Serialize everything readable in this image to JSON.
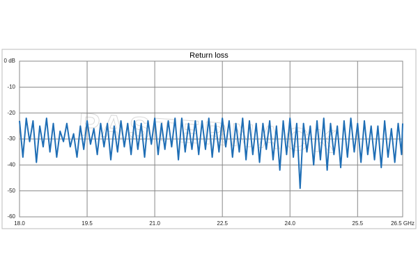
{
  "chart_data": {
    "type": "line",
    "title": "Return loss",
    "watermark": "PASTERNACK",
    "x": [
      18,
      18.075,
      18.15,
      18.225,
      18.3,
      18.375,
      18.45,
      18.525,
      18.6,
      18.675,
      18.75,
      18.825,
      18.9,
      18.975,
      19.05,
      19.125,
      19.2,
      19.275,
      19.35,
      19.425,
      19.5,
      19.575,
      19.65,
      19.725,
      19.8,
      19.875,
      19.95,
      20.025,
      20.1,
      20.175,
      20.25,
      20.325,
      20.4,
      20.475,
      20.55,
      20.625,
      20.7,
      20.775,
      20.85,
      20.925,
      21,
      21.075,
      21.15,
      21.225,
      21.3,
      21.375,
      21.45,
      21.525,
      21.6,
      21.675,
      21.75,
      21.825,
      21.9,
      21.975,
      22.05,
      22.125,
      22.2,
      22.275,
      22.35,
      22.425,
      22.5,
      22.575,
      22.65,
      22.725,
      22.8,
      22.875,
      22.95,
      23.025,
      23.1,
      23.175,
      23.25,
      23.325,
      23.4,
      23.475,
      23.55,
      23.625,
      23.7,
      23.775,
      23.85,
      23.925,
      24,
      24.075,
      24.15,
      24.225,
      24.3,
      24.375,
      24.45,
      24.525,
      24.6,
      24.675,
      24.75,
      24.825,
      24.9,
      24.975,
      25.05,
      25.125,
      25.2,
      25.275,
      25.35,
      25.425,
      25.5,
      25.575,
      25.65,
      25.725,
      25.8,
      25.875,
      25.95,
      26.025,
      26.1,
      26.175,
      26.25,
      26.325,
      26.4,
      26.475,
      26.5
    ],
    "values": [
      -23,
      -37,
      -22,
      -31,
      -23,
      -39,
      -25,
      -33,
      -22,
      -35,
      -24,
      -37,
      -27,
      -31,
      -24,
      -33,
      -28,
      -37,
      -25,
      -34,
      -23,
      -32,
      -26,
      -36,
      -24,
      -33,
      -24,
      -38,
      -25,
      -35,
      -23,
      -33,
      -24,
      -36,
      -23,
      -34,
      -24,
      -37,
      -23,
      -32,
      -22,
      -36,
      -24,
      -34,
      -23,
      -33,
      -22,
      -38,
      -22,
      -35,
      -24,
      -34,
      -23,
      -36,
      -23,
      -34,
      -22,
      -37,
      -24,
      -35,
      -22,
      -33,
      -23,
      -37,
      -24,
      -35,
      -22,
      -38,
      -23,
      -36,
      -24,
      -39,
      -24,
      -34,
      -23,
      -38,
      -25,
      -42,
      -23,
      -36,
      -22,
      -37,
      -24,
      -49,
      -24,
      -35,
      -25,
      -40,
      -23,
      -38,
      -22,
      -42,
      -24,
      -36,
      -25,
      -41,
      -23,
      -37,
      -22,
      -35,
      -24,
      -39,
      -23,
      -36,
      -25,
      -38,
      -25,
      -41,
      -23,
      -37,
      -26,
      -39,
      -24,
      -36,
      -24
    ],
    "color": "#1f6eb5",
    "xlim": [
      18,
      26.5
    ],
    "xticks": [
      {
        "value": 18,
        "label": "18.0"
      },
      19.5,
      {
        "value": 21,
        "label": "21.0"
      },
      22.5,
      {
        "value": 24,
        "label": "24.0"
      },
      25.5,
      {
        "value": 26.5,
        "label": "26.5 GHz"
      }
    ],
    "ylim": [
      -60,
      0
    ],
    "yticks": [
      {
        "value": 0,
        "label": "0 dB"
      },
      -10,
      -20,
      -30,
      -40,
      -50,
      -60
    ],
    "grid": true
  }
}
